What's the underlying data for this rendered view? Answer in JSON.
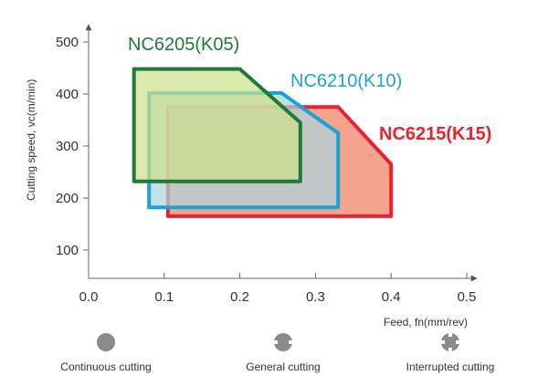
{
  "chart_data": {
    "type": "area",
    "xlabel": "Feed, fn(mm/rev)",
    "ylabel": "Cutting speed, vc(m/min)",
    "xlim": [
      0.0,
      0.5
    ],
    "ylim": [
      100,
      500
    ],
    "x_ticks": [
      "0.0",
      "0.1",
      "0.2",
      "0.3",
      "0.4",
      "0.5"
    ],
    "y_ticks": [
      "100",
      "200",
      "300",
      "400",
      "500"
    ],
    "x_tick_values": [
      0.0,
      0.1,
      0.2,
      0.3,
      0.4,
      0.5
    ],
    "y_tick_values": [
      100,
      200,
      300,
      400,
      500
    ],
    "grid": false,
    "series": [
      {
        "name": "NC6215(K15)",
        "color": "#e8232f",
        "fill": "#f4a48c",
        "label_weight": "bold",
        "points": [
          [
            0.105,
            165
          ],
          [
            0.105,
            375
          ],
          [
            0.33,
            375
          ],
          [
            0.4,
            265
          ],
          [
            0.4,
            165
          ]
        ]
      },
      {
        "name": "NC6210(K10)",
        "color": "#1aa3d6",
        "fill": "#aed3dc",
        "label_weight": "normal",
        "points": [
          [
            0.08,
            182
          ],
          [
            0.08,
            402
          ],
          [
            0.255,
            402
          ],
          [
            0.33,
            325
          ],
          [
            0.33,
            182
          ]
        ]
      },
      {
        "name": "NC6205(K05)",
        "color": "#1f7a3a",
        "fill": "#cde08e",
        "label_weight": "normal",
        "points": [
          [
            0.06,
            232
          ],
          [
            0.06,
            448
          ],
          [
            0.2,
            448
          ],
          [
            0.28,
            345
          ],
          [
            0.28,
            232
          ]
        ]
      }
    ]
  },
  "conditions": [
    {
      "label": "Continuous cutting",
      "icon": "solid-circle-icon"
    },
    {
      "label": "General cutting",
      "icon": "notched-circle-icon"
    },
    {
      "label": "Interrupted cutting",
      "icon": "cross-notched-circle-icon"
    }
  ]
}
